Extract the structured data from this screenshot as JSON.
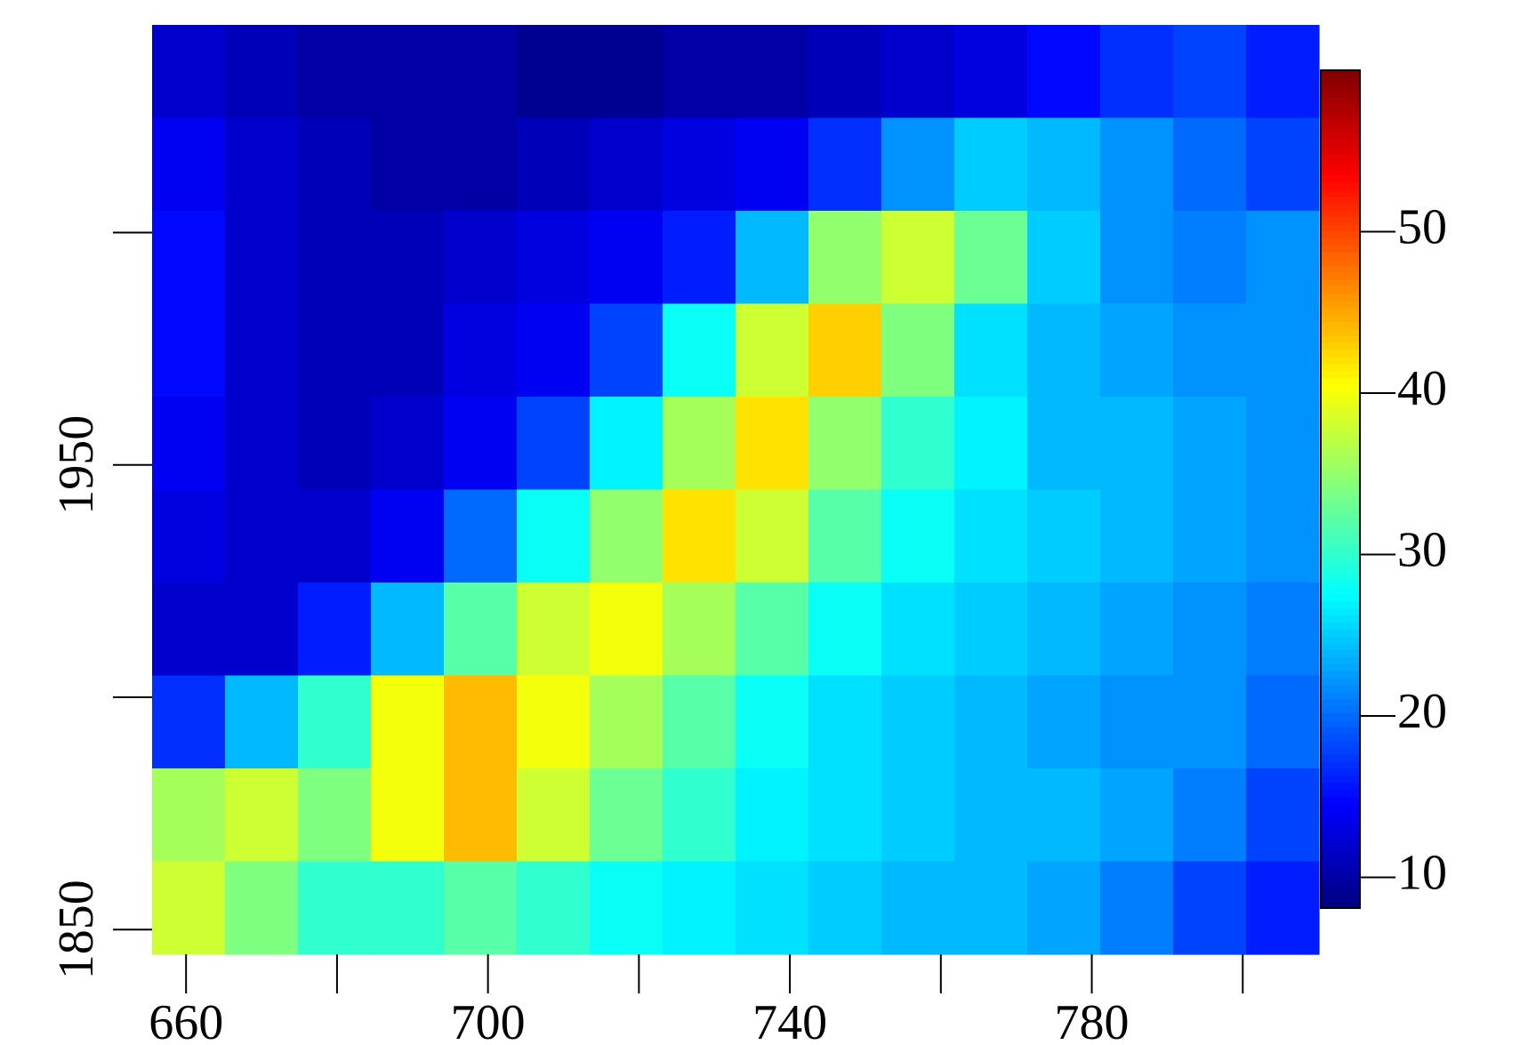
{
  "chart_data": {
    "type": "heatmap",
    "colormap": "jet",
    "xlim": [
      655.5,
      810.1
    ],
    "ylim": [
      1844.7,
      2044.7
    ],
    "xticks": [
      660,
      700,
      740,
      780
    ],
    "xminor_ticks": [
      680,
      720,
      760,
      800
    ],
    "yticks": [
      1850,
      1950
    ],
    "yminor_ticks": [
      1900,
      2000
    ],
    "zlim": [
      8.1,
      60
    ],
    "zticks": [
      10,
      20,
      30,
      40,
      50
    ],
    "z": [
      [
        12,
        11,
        10,
        10,
        10,
        9,
        9,
        10,
        10,
        11,
        12,
        13,
        15,
        17,
        18,
        16
      ],
      [
        14,
        12,
        11,
        10,
        10,
        11,
        12,
        13,
        14,
        17,
        22,
        25,
        24,
        22,
        20,
        18
      ],
      [
        15,
        12,
        11,
        11,
        12,
        13,
        14,
        16,
        24,
        35,
        38,
        33,
        25,
        22,
        21,
        22
      ],
      [
        15,
        12,
        11,
        11,
        13,
        14,
        18,
        28,
        38,
        43,
        34,
        26,
        24,
        23,
        22,
        22
      ],
      [
        14,
        12,
        11,
        12,
        14,
        18,
        27,
        36,
        42,
        35,
        30,
        27,
        24,
        24,
        23,
        22
      ],
      [
        13,
        12,
        12,
        14,
        20,
        28,
        35,
        42,
        38,
        32,
        28,
        26,
        25,
        24,
        23,
        22
      ],
      [
        12,
        12,
        16,
        24,
        32,
        38,
        40,
        36,
        32,
        28,
        26,
        25,
        24,
        23,
        22,
        21
      ],
      [
        17,
        24,
        30,
        40,
        44,
        40,
        36,
        32,
        28,
        26,
        25,
        24,
        23,
        22,
        22,
        20
      ],
      [
        36,
        38,
        34,
        40,
        44,
        38,
        33,
        30,
        27,
        26,
        25,
        24,
        24,
        23,
        21,
        18
      ],
      [
        38,
        34,
        30,
        30,
        32,
        30,
        28,
        27,
        26,
        25,
        24,
        24,
        23,
        21,
        18,
        16
      ]
    ]
  }
}
